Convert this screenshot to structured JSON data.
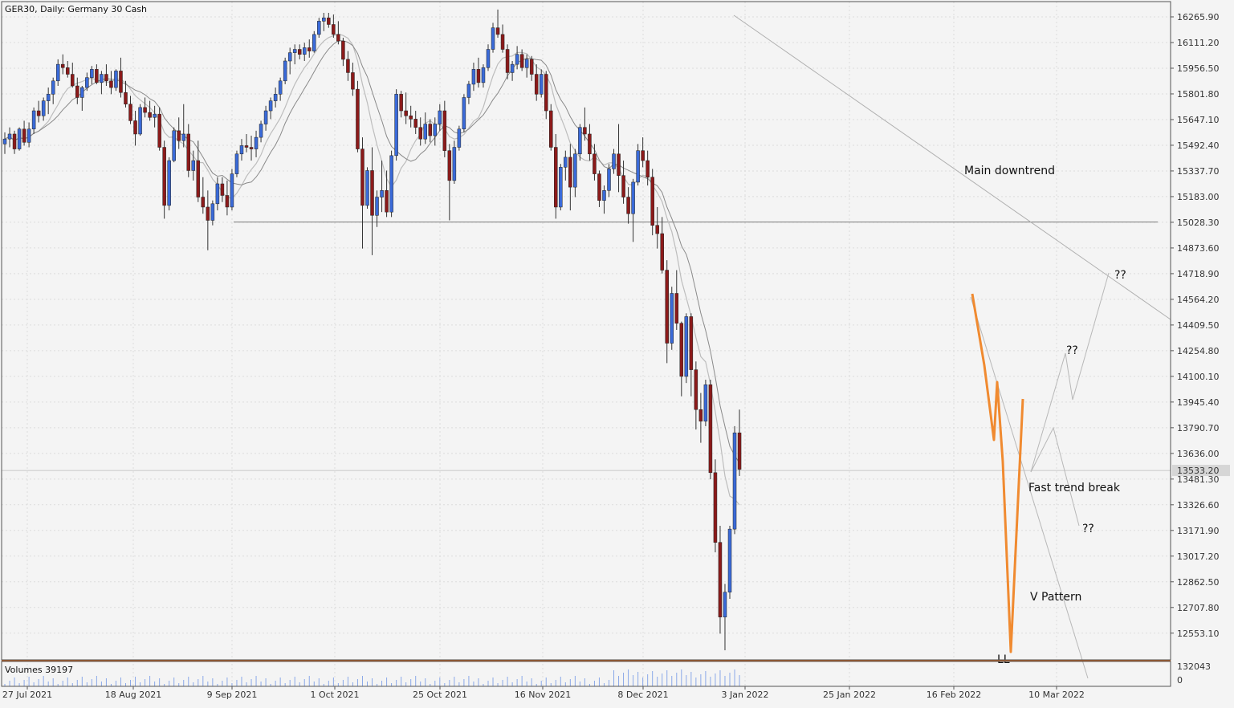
{
  "chart_data": {
    "type": "candlestick",
    "title": "GER30, Daily:  Germany 30 Cash",
    "volume_label": "Volumes 39197",
    "price_tick_labels": [
      "16265.90",
      "16111.20",
      "15956.50",
      "15801.80",
      "15647.10",
      "15492.40",
      "15337.70",
      "15183.00",
      "15028.30",
      "14873.60",
      "14718.90",
      "14564.20",
      "14409.50",
      "14254.80",
      "14100.10",
      "13945.40",
      "13790.70",
      "13636.00",
      "13481.30",
      "13326.60",
      "13171.90",
      "13017.20",
      "12862.50",
      "12707.80",
      "12553.10"
    ],
    "current_price_label": "13533.20",
    "volume_tick_labels": [
      "132043",
      "0"
    ],
    "date_tick_labels": [
      "27 Jul 2021",
      "18 Aug 2021",
      "9 Sep 2021",
      "1 Oct 2021",
      "25 Oct 2021",
      "16 Nov 2021",
      "8 Dec 2021",
      "3 Jan 2022",
      "25 Jan 2022",
      "16 Feb 2022",
      "10 Mar 2022"
    ],
    "ylim": [
      12430,
      16340
    ],
    "support_level": 15030,
    "annotations": [
      "Main downtrend",
      "??",
      "??",
      "Fast trend break",
      "??",
      "V Pattern",
      "LL"
    ],
    "colors": {
      "bull": "#3a6ad8",
      "bear": "#8b1a1a",
      "wick": "#333333",
      "ma": "#9a9a9a",
      "v_pattern": "#f08a30",
      "grid": "#dcdcdc"
    },
    "candles": [
      [
        15500,
        15570,
        15440,
        15530
      ],
      [
        15530,
        15600,
        15480,
        15560
      ],
      [
        15560,
        15580,
        15440,
        15470
      ],
      [
        15470,
        15600,
        15460,
        15590
      ],
      [
        15590,
        15640,
        15490,
        15510
      ],
      [
        15510,
        15630,
        15480,
        15590
      ],
      [
        15590,
        15720,
        15560,
        15700
      ],
      [
        15700,
        15760,
        15630,
        15670
      ],
      [
        15670,
        15780,
        15640,
        15760
      ],
      [
        15760,
        15840,
        15680,
        15800
      ],
      [
        15800,
        15900,
        15740,
        15880
      ],
      [
        15880,
        16010,
        15850,
        15980
      ],
      [
        15980,
        16040,
        15920,
        15960
      ],
      [
        15960,
        16000,
        15900,
        15920
      ],
      [
        15920,
        15990,
        15840,
        15850
      ],
      [
        15850,
        15900,
        15740,
        15780
      ],
      [
        15780,
        15850,
        15700,
        15840
      ],
      [
        15840,
        15930,
        15820,
        15900
      ],
      [
        15900,
        15970,
        15860,
        15950
      ],
      [
        15950,
        15980,
        15860,
        15870
      ],
      [
        15870,
        15940,
        15800,
        15920
      ],
      [
        15920,
        15980,
        15850,
        15880
      ],
      [
        15880,
        15940,
        15800,
        15840
      ],
      [
        15840,
        15950,
        15820,
        15940
      ],
      [
        15940,
        16020,
        15780,
        15810
      ],
      [
        15810,
        15880,
        15720,
        15740
      ],
      [
        15740,
        15790,
        15620,
        15640
      ],
      [
        15640,
        15700,
        15490,
        15560
      ],
      [
        15560,
        15740,
        15550,
        15720
      ],
      [
        15720,
        15780,
        15660,
        15690
      ],
      [
        15690,
        15760,
        15640,
        15660
      ],
      [
        15660,
        15730,
        15600,
        15680
      ],
      [
        15680,
        15720,
        15460,
        15480
      ],
      [
        15480,
        15520,
        15050,
        15130
      ],
      [
        15130,
        15420,
        15100,
        15400
      ],
      [
        15400,
        15600,
        15390,
        15580
      ],
      [
        15580,
        15660,
        15470,
        15520
      ],
      [
        15520,
        15740,
        15480,
        15560
      ],
      [
        15560,
        15620,
        15300,
        15340
      ],
      [
        15340,
        15460,
        15280,
        15400
      ],
      [
        15400,
        15520,
        15150,
        15180
      ],
      [
        15180,
        15300,
        15080,
        15120
      ],
      [
        15120,
        15220,
        14860,
        15040
      ],
      [
        15040,
        15160,
        15010,
        15140
      ],
      [
        15140,
        15300,
        15100,
        15260
      ],
      [
        15260,
        15300,
        15150,
        15190
      ],
      [
        15190,
        15280,
        15070,
        15120
      ],
      [
        15120,
        15350,
        15100,
        15320
      ],
      [
        15320,
        15460,
        15300,
        15440
      ],
      [
        15440,
        15530,
        15400,
        15490
      ],
      [
        15490,
        15560,
        15450,
        15480
      ],
      [
        15480,
        15550,
        15400,
        15470
      ],
      [
        15470,
        15580,
        15420,
        15540
      ],
      [
        15540,
        15640,
        15510,
        15620
      ],
      [
        15620,
        15730,
        15580,
        15700
      ],
      [
        15700,
        15780,
        15650,
        15760
      ],
      [
        15760,
        15840,
        15720,
        15800
      ],
      [
        15800,
        15900,
        15760,
        15880
      ],
      [
        15880,
        16020,
        15860,
        16000
      ],
      [
        16000,
        16080,
        15920,
        16050
      ],
      [
        16050,
        16100,
        15980,
        16070
      ],
      [
        16070,
        16100,
        16010,
        16040
      ],
      [
        16040,
        16110,
        16000,
        16080
      ],
      [
        16080,
        16130,
        16020,
        16060
      ],
      [
        16060,
        16180,
        16050,
        16160
      ],
      [
        16160,
        16260,
        16140,
        16240
      ],
      [
        16240,
        16290,
        16180,
        16260
      ],
      [
        16260,
        16290,
        16200,
        16220
      ],
      [
        16220,
        16280,
        16140,
        16160
      ],
      [
        16160,
        16240,
        16100,
        16120
      ],
      [
        16120,
        16140,
        15970,
        16010
      ],
      [
        16010,
        16060,
        15880,
        15930
      ],
      [
        15930,
        15990,
        15790,
        15830
      ],
      [
        15830,
        15880,
        15450,
        15470
      ],
      [
        15470,
        15540,
        14870,
        15130
      ],
      [
        15130,
        15360,
        15110,
        15340
      ],
      [
        15340,
        15480,
        14830,
        15070
      ],
      [
        15070,
        15220,
        15000,
        15180
      ],
      [
        15180,
        15400,
        15090,
        15220
      ],
      [
        15220,
        15340,
        15060,
        15090
      ],
      [
        15090,
        15460,
        15060,
        15430
      ],
      [
        15430,
        15830,
        15400,
        15800
      ],
      [
        15800,
        15820,
        15660,
        15700
      ],
      [
        15700,
        15810,
        15620,
        15670
      ],
      [
        15670,
        15730,
        15600,
        15650
      ],
      [
        15650,
        15700,
        15560,
        15600
      ],
      [
        15600,
        15660,
        15490,
        15530
      ],
      [
        15530,
        15690,
        15500,
        15620
      ],
      [
        15620,
        15650,
        15510,
        15550
      ],
      [
        15550,
        15660,
        15490,
        15620
      ],
      [
        15620,
        15740,
        15580,
        15700
      ],
      [
        15700,
        15760,
        15420,
        15460
      ],
      [
        15460,
        15500,
        15040,
        15280
      ],
      [
        15280,
        15520,
        15260,
        15480
      ],
      [
        15480,
        15610,
        15460,
        15590
      ],
      [
        15590,
        15800,
        15570,
        15780
      ],
      [
        15780,
        15880,
        15740,
        15860
      ],
      [
        15860,
        15990,
        15820,
        15950
      ],
      [
        15950,
        16020,
        15840,
        15870
      ],
      [
        15870,
        15980,
        15840,
        15960
      ],
      [
        15960,
        16100,
        15940,
        16070
      ],
      [
        16070,
        16230,
        16050,
        16200
      ],
      [
        16200,
        16310,
        16140,
        16160
      ],
      [
        16160,
        16220,
        16050,
        16070
      ],
      [
        16070,
        16100,
        15890,
        15930
      ],
      [
        15930,
        16000,
        15880,
        15980
      ],
      [
        15980,
        16090,
        15950,
        16040
      ],
      [
        16040,
        16070,
        15940,
        15960
      ],
      [
        15960,
        16040,
        15900,
        16010
      ],
      [
        16010,
        16030,
        15880,
        15920
      ],
      [
        15920,
        15980,
        15760,
        15800
      ],
      [
        15800,
        15950,
        15780,
        15920
      ],
      [
        15920,
        15940,
        15650,
        15700
      ],
      [
        15700,
        15740,
        15460,
        15480
      ],
      [
        15480,
        15560,
        15050,
        15120
      ],
      [
        15120,
        15380,
        15100,
        15360
      ],
      [
        15360,
        15460,
        15280,
        15420
      ],
      [
        15420,
        15500,
        15100,
        15240
      ],
      [
        15240,
        15470,
        15180,
        15440
      ],
      [
        15440,
        15620,
        15400,
        15600
      ],
      [
        15600,
        15720,
        15520,
        15560
      ],
      [
        15560,
        15620,
        15400,
        15440
      ],
      [
        15440,
        15500,
        15280,
        15320
      ],
      [
        15320,
        15340,
        15120,
        15160
      ],
      [
        15160,
        15250,
        15080,
        15220
      ],
      [
        15220,
        15380,
        15180,
        15350
      ],
      [
        15350,
        15470,
        15320,
        15440
      ],
      [
        15440,
        15620,
        15210,
        15310
      ],
      [
        15310,
        15400,
        15140,
        15180
      ],
      [
        15180,
        15240,
        15020,
        15080
      ],
      [
        15080,
        15290,
        14910,
        15270
      ],
      [
        15270,
        15500,
        15250,
        15460
      ],
      [
        15460,
        15540,
        15360,
        15400
      ],
      [
        15400,
        15460,
        15250,
        15300
      ],
      [
        15300,
        15350,
        14950,
        15010
      ],
      [
        15010,
        15120,
        14870,
        14960
      ],
      [
        14960,
        15060,
        14720,
        14740
      ],
      [
        14740,
        14800,
        14180,
        14300
      ],
      [
        14300,
        14640,
        14260,
        14600
      ],
      [
        14600,
        14740,
        14380,
        14420
      ],
      [
        14420,
        14430,
        13980,
        14100
      ],
      [
        14100,
        14480,
        14060,
        14460
      ],
      [
        14460,
        14480,
        13980,
        14140
      ],
      [
        14140,
        14190,
        13780,
        13900
      ],
      [
        13900,
        14000,
        13700,
        13830
      ],
      [
        13830,
        14080,
        13800,
        14050
      ],
      [
        14050,
        14080,
        13480,
        13520
      ],
      [
        13520,
        13600,
        13040,
        13100
      ],
      [
        13100,
        13200,
        12550,
        12650
      ],
      [
        12650,
        12850,
        12450,
        12800
      ],
      [
        12800,
        13200,
        12760,
        13180
      ],
      [
        13180,
        13800,
        13150,
        13760
      ],
      [
        13760,
        13900,
        13500,
        13540
      ]
    ]
  }
}
